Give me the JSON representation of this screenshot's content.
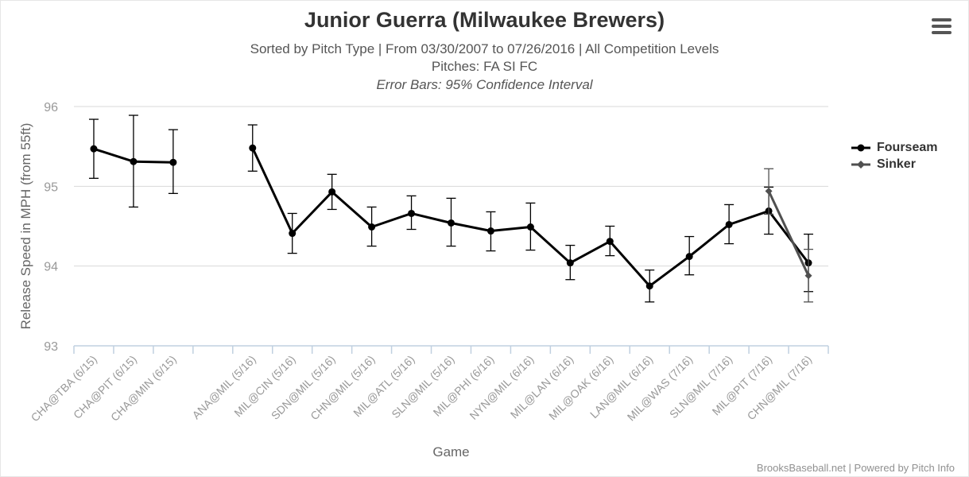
{
  "header": {
    "title": "Junior Guerra (Milwaukee Brewers)",
    "subtitle_line_1": "Sorted by Pitch Type | From 03/30/2007 to 07/26/2016 | All Competition Levels",
    "subtitle_line_2": "Pitches: FA SI FC",
    "subtitle_line_3": "Error Bars: 95% Confidence Interval"
  },
  "credits": "BrooksBaseball.net | Powered by Pitch Info",
  "menu": {
    "icon": "hamburger-menu-icon"
  },
  "colors": {
    "fourseam": "#000000",
    "sinker": "#505050",
    "grid": "#d8d8d8",
    "axis": "#c0d0e0",
    "tick_label": "#999999",
    "axis_title": "#666666"
  },
  "chart_data": {
    "type": "line",
    "title": "Junior Guerra (Milwaukee Brewers)",
    "xlabel": "Game",
    "ylabel": "Release Speed in MPH (from 55ft)",
    "ylim": [
      93,
      96
    ],
    "yticks": [
      93,
      94,
      95,
      96
    ],
    "grid": true,
    "legend_position": "right",
    "categories": [
      "CHA@TBA (6/15)",
      "CHA@PIT (6/15)",
      "CHA@MIN (6/15)",
      "",
      "ANA@MIL (5/16)",
      "MIL@CIN (5/16)",
      "SDN@MIL (5/16)",
      "CHN@MIL (5/16)",
      "MIL@ATL (5/16)",
      "SLN@MIL (5/16)",
      "MIL@PHI (6/16)",
      "NYN@MIL (6/16)",
      "MIL@LAN (6/16)",
      "MIL@OAK (6/16)",
      "LAN@MIL (6/16)",
      "MIL@WAS (7/16)",
      "SLN@MIL (7/16)",
      "MIL@PIT (7/16)",
      "CHN@MIL (7/16)"
    ],
    "series": [
      {
        "name": "Fourseam",
        "values": [
          95.47,
          95.31,
          95.3,
          null,
          95.48,
          94.41,
          94.93,
          94.49,
          94.66,
          94.54,
          94.44,
          94.49,
          94.04,
          94.31,
          93.75,
          94.12,
          94.52,
          94.69,
          94.04
        ],
        "error_low": [
          95.1,
          94.74,
          94.91,
          null,
          95.19,
          94.16,
          94.71,
          94.25,
          94.46,
          94.25,
          94.19,
          94.2,
          93.83,
          94.13,
          93.55,
          93.89,
          94.28,
          94.4,
          93.68
        ],
        "error_high": [
          95.84,
          95.89,
          95.71,
          null,
          95.77,
          94.66,
          95.15,
          94.74,
          94.88,
          94.85,
          94.68,
          94.79,
          94.26,
          94.5,
          93.95,
          94.37,
          94.77,
          94.99,
          94.4
        ]
      },
      {
        "name": "Sinker",
        "values": [
          null,
          null,
          null,
          null,
          null,
          null,
          null,
          null,
          null,
          null,
          null,
          null,
          null,
          null,
          null,
          null,
          null,
          94.94,
          93.88
        ],
        "error_low": [
          null,
          null,
          null,
          null,
          null,
          null,
          null,
          null,
          null,
          null,
          null,
          null,
          null,
          null,
          null,
          null,
          null,
          94.65,
          93.55
        ],
        "error_high": [
          null,
          null,
          null,
          null,
          null,
          null,
          null,
          null,
          null,
          null,
          null,
          null,
          null,
          null,
          null,
          null,
          null,
          95.22,
          94.21
        ]
      }
    ]
  }
}
